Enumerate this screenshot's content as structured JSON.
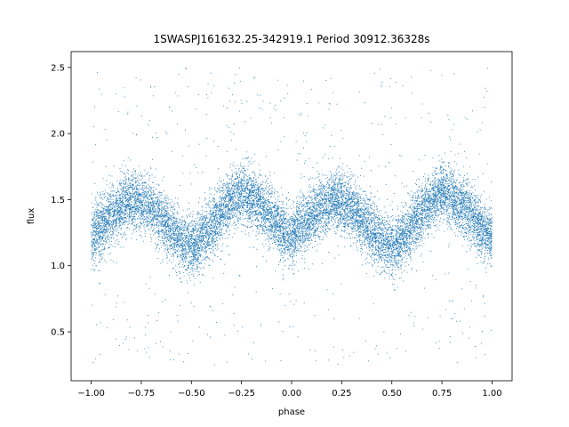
{
  "chart_data": {
    "type": "scatter",
    "title": "1SWASPJ161632.25-342919.1 Period 30912.36328s",
    "xlabel": "phase",
    "ylabel": "flux",
    "xlim": [
      -1.1,
      1.1
    ],
    "ylim": [
      0.13,
      2.62
    ],
    "grid": false,
    "x_ticks": [
      -1.0,
      -0.75,
      -0.5,
      -0.25,
      0.0,
      0.25,
      0.5,
      0.75,
      1.0
    ],
    "x_tick_labels": [
      "−1.00",
      "−0.75",
      "−0.50",
      "−0.25",
      "0.00",
      "0.25",
      "0.50",
      "0.75",
      "1.00"
    ],
    "y_ticks": [
      0.5,
      1.0,
      1.5,
      2.0,
      2.5
    ],
    "y_tick_labels": [
      "0.5",
      "1.0",
      "1.5",
      "2.0",
      "2.5"
    ],
    "marker_color": "#1f77b4",
    "x_range": [
      -1.0,
      1.0
    ],
    "series": [
      {
        "curve": [
          [
            -1.0,
            1.22
          ],
          [
            -0.95,
            1.3
          ],
          [
            -0.9,
            1.37
          ],
          [
            -0.85,
            1.44
          ],
          [
            -0.8,
            1.49
          ],
          [
            -0.75,
            1.48
          ],
          [
            -0.7,
            1.43
          ],
          [
            -0.65,
            1.35
          ],
          [
            -0.6,
            1.26
          ],
          [
            -0.55,
            1.18
          ],
          [
            -0.5,
            1.14
          ],
          [
            -0.45,
            1.2
          ],
          [
            -0.4,
            1.3
          ],
          [
            -0.35,
            1.4
          ],
          [
            -0.3,
            1.49
          ],
          [
            -0.25,
            1.55
          ],
          [
            -0.2,
            1.52
          ],
          [
            -0.15,
            1.45
          ],
          [
            -0.1,
            1.37
          ],
          [
            -0.05,
            1.28
          ],
          [
            0.0,
            1.22
          ],
          [
            0.05,
            1.3
          ],
          [
            0.1,
            1.37
          ],
          [
            0.15,
            1.44
          ],
          [
            0.2,
            1.49
          ],
          [
            0.25,
            1.48
          ],
          [
            0.3,
            1.43
          ],
          [
            0.35,
            1.35
          ],
          [
            0.4,
            1.26
          ],
          [
            0.45,
            1.18
          ],
          [
            0.5,
            1.14
          ],
          [
            0.55,
            1.2
          ],
          [
            0.6,
            1.3
          ],
          [
            0.65,
            1.4
          ],
          [
            0.7,
            1.49
          ],
          [
            0.75,
            1.55
          ],
          [
            0.8,
            1.52
          ],
          [
            0.85,
            1.45
          ],
          [
            0.9,
            1.37
          ],
          [
            0.95,
            1.28
          ],
          [
            1.0,
            1.22
          ]
        ],
        "scatter_sd": 0.11,
        "points": 14000,
        "outlier_fraction": 0.05,
        "outlier_range": [
          0.25,
          2.5
        ]
      }
    ]
  }
}
